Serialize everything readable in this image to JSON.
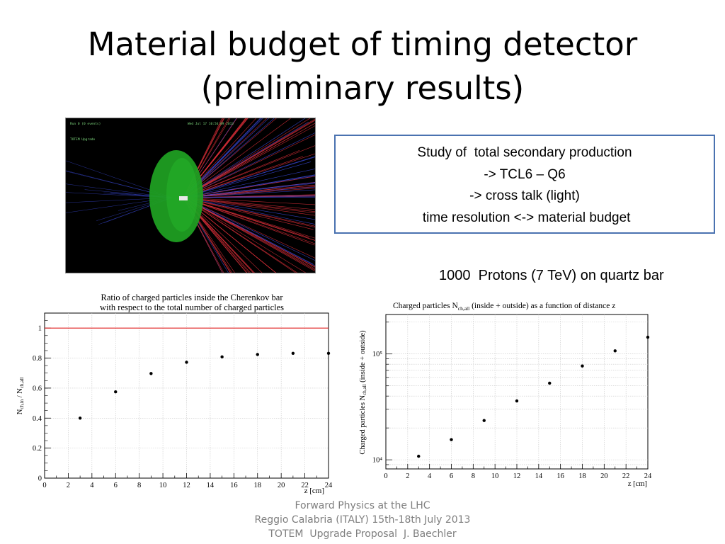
{
  "slide": {
    "title_line1": "Material budget of timing detector",
    "title_line2": "(preliminary results)",
    "infobox": [
      "Study of  total secondary production",
      "-> TCL6 – Q6",
      "-> cross talk (light)",
      " time resolution <-> material budget"
    ],
    "protons_caption": "1000  Protons (7 TeV) on quartz bar",
    "footer": [
      "Forward Physics at the LHC",
      "Reggio Calabria (ITALY) 15th-18th July 2013",
      "TOTEM  Upgrade Proposal  J. Baechler"
    ],
    "sim_image": {
      "label_tl": "Run 0 (0 events)",
      "label_tc": "Wed Jul 17 10:56:09 2013",
      "label_sub": "TOTEM Upgrade",
      "colors": {
        "background": "#000000",
        "detector": "#1a9a1a",
        "tracks_red": "#e0303a",
        "tracks_blue": "#3a4ad8"
      }
    }
  },
  "chart_data": [
    {
      "type": "scatter",
      "title": "Ratio of charged particles inside the Cherenkov bar",
      "subtitle": "with respect to the total number of charged particles",
      "xlabel": "z [cm]",
      "ylabel": "N_{ch,in} / N_{ch,all}",
      "xlim": [
        0,
        24
      ],
      "ylim": [
        0,
        1.1
      ],
      "x_ticks": [
        0,
        2,
        4,
        6,
        8,
        10,
        12,
        14,
        16,
        18,
        20,
        22,
        24
      ],
      "y_ticks": [
        0,
        0.2,
        0.4,
        0.6,
        0.8,
        1
      ],
      "reference_line": {
        "y": 1,
        "color": "#e02020"
      },
      "grid": true,
      "series": [
        {
          "x": [
            3,
            6,
            9,
            12,
            15,
            18,
            21,
            24
          ],
          "y": [
            0.4,
            0.575,
            0.697,
            0.772,
            0.808,
            0.824,
            0.832,
            0.832
          ]
        }
      ]
    },
    {
      "type": "scatter",
      "title": "Charged particles N_{ch,all} (inside + outside) as a function of distance z",
      "xlabel": "z [cm]",
      "ylabel": "Charged particles N_{ch,all} (inside + outside)",
      "xlim": [
        0,
        24
      ],
      "ylim": [
        8200,
        236000
      ],
      "y_scale": "log",
      "x_ticks": [
        0,
        2,
        4,
        6,
        8,
        10,
        12,
        14,
        16,
        18,
        20,
        22,
        24
      ],
      "y_ticks_labeled": [
        10000,
        100000
      ],
      "y_tick_labels": [
        "10⁴",
        "10⁵"
      ],
      "grid": true,
      "series": [
        {
          "x": [
            3,
            6,
            9,
            12,
            15,
            18,
            21,
            24
          ],
          "y": [
            10800,
            15500,
            23500,
            36000,
            53000,
            77000,
            107000,
            144000
          ]
        }
      ]
    }
  ]
}
